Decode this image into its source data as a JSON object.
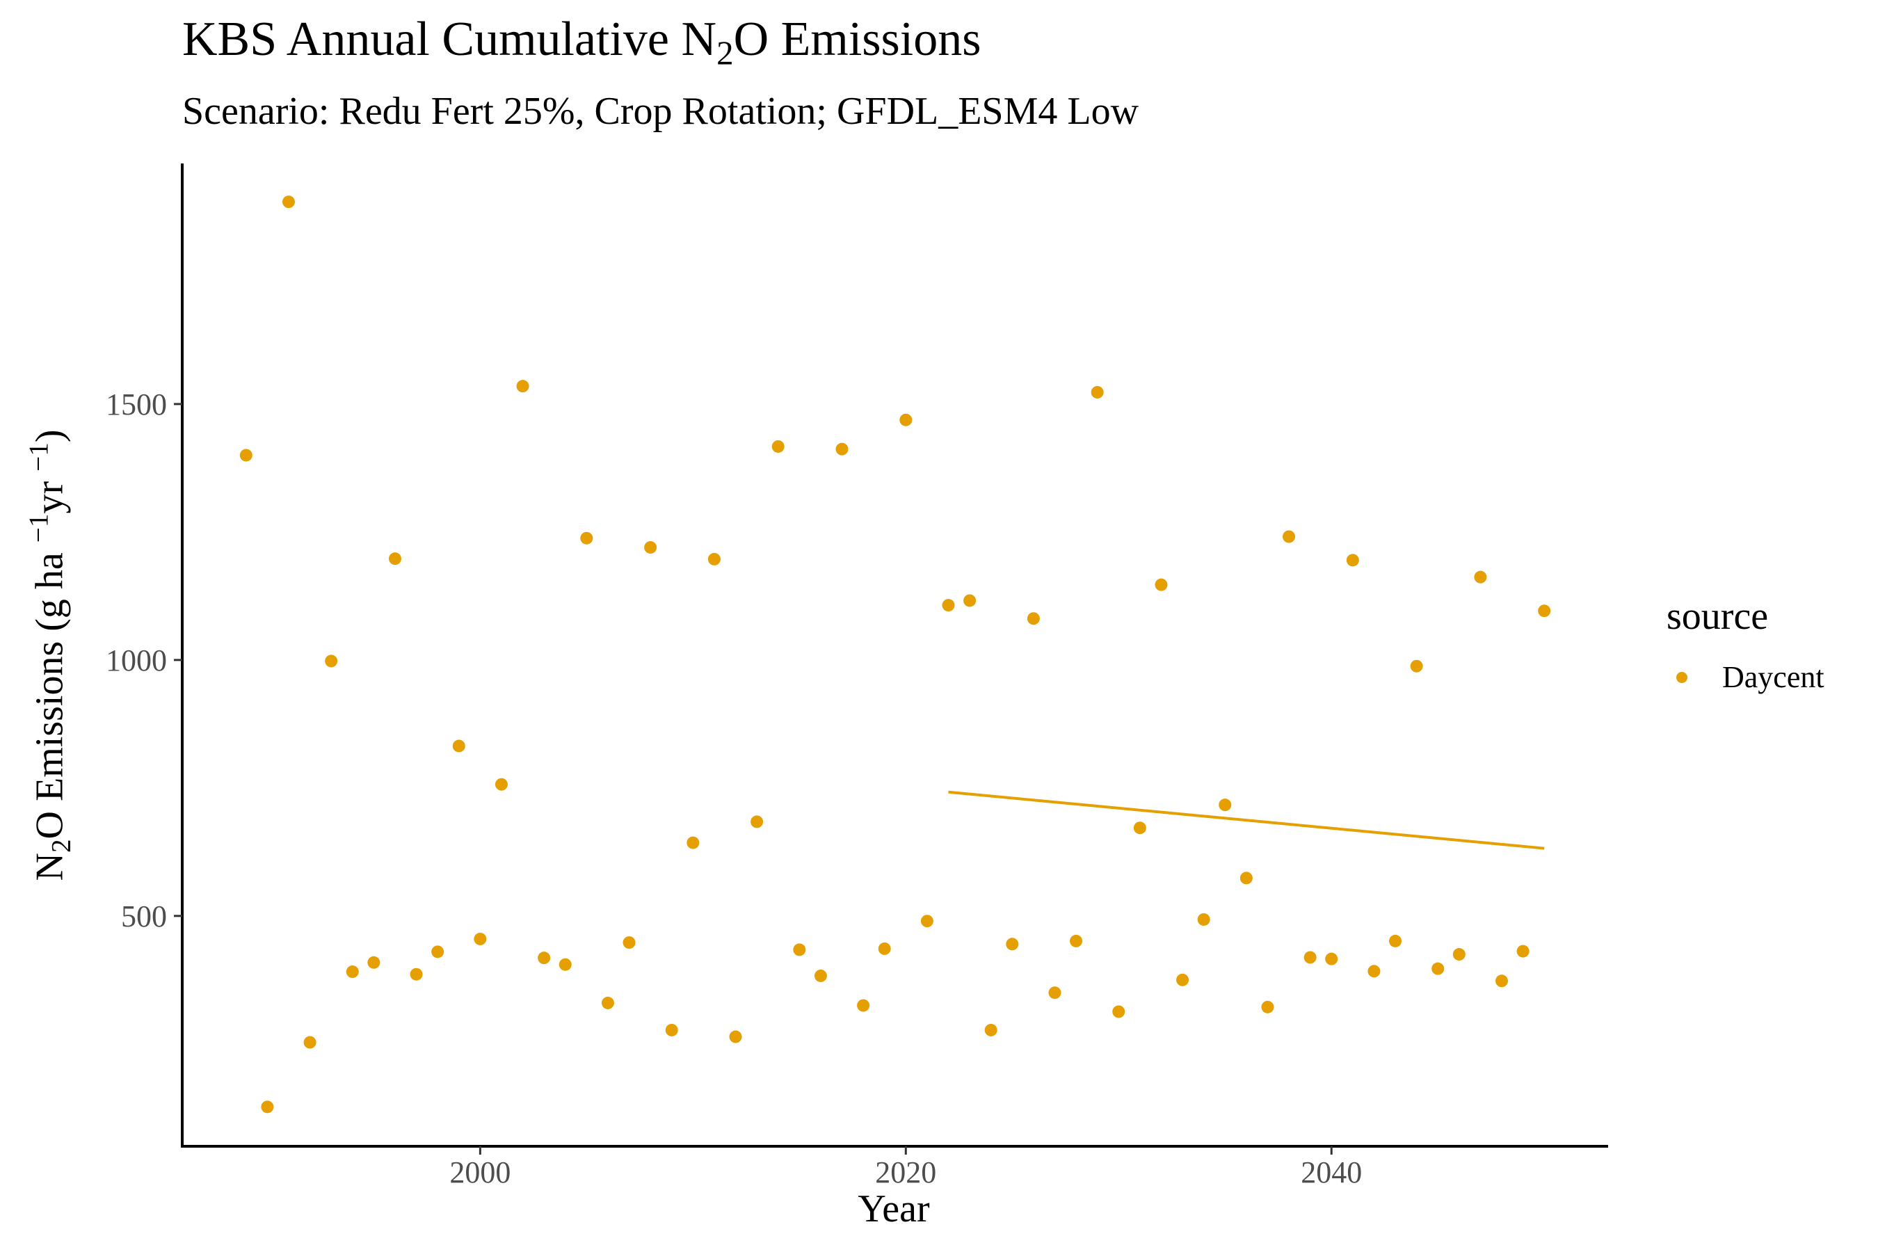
{
  "chart_data": {
    "type": "scatter",
    "title_parts": [
      "KBS Annual Cumulative N",
      "2",
      "O Emissions"
    ],
    "subtitle": "Scenario: Redu Fert 25%, Crop Rotation; GFDL_ESM4 Low",
    "xlabel": "Year",
    "ylabel_parts": [
      "N",
      "2",
      "O Emissions (g ha ",
      "−1",
      "yr ",
      "−1",
      ")"
    ],
    "xlim": [
      1986,
      2053
    ],
    "ylim": [
      50,
      1970
    ],
    "x_ticks": [
      2000,
      2020,
      2040
    ],
    "y_ticks": [
      500,
      1000,
      1500
    ],
    "grid": false,
    "legend": {
      "title": "source",
      "position": "right",
      "entries": [
        "Daycent"
      ]
    },
    "series": [
      {
        "name": "Daycent",
        "color": "#E69F00",
        "x": [
          1989,
          1990,
          1991,
          1992,
          1993,
          1994,
          1995,
          1996,
          1997,
          1998,
          1999,
          2000,
          2001,
          2002,
          2003,
          2004,
          2005,
          2006,
          2007,
          2008,
          2009,
          2010,
          2011,
          2012,
          2013,
          2014,
          2015,
          2016,
          2017,
          2018,
          2019,
          2020,
          2021,
          2022,
          2023,
          2024,
          2025,
          2026,
          2027,
          2028,
          2029,
          2030,
          2031,
          2032,
          2033,
          2034,
          2035,
          2036,
          2037,
          2038,
          2039,
          2040,
          2041,
          2042,
          2043,
          2044,
          2045,
          2046,
          2047,
          2048,
          2049,
          2050
        ],
        "y": [
          1400,
          127,
          1895,
          253,
          998,
          391,
          409,
          1198,
          386,
          430,
          832,
          455,
          757,
          1535,
          418,
          405,
          1238,
          330,
          448,
          1220,
          277,
          643,
          1197,
          264,
          684,
          1417,
          434,
          383,
          1412,
          325,
          436,
          1469,
          490,
          1107,
          1116,
          277,
          445,
          1081,
          350,
          451,
          1523,
          313,
          672,
          1147,
          375,
          493,
          717,
          574,
          322,
          1241,
          419,
          416,
          1195,
          392,
          451,
          988,
          397,
          425,
          1162,
          373,
          431,
          1096
        ]
      }
    ],
    "trend_line": {
      "x": [
        2022,
        2050
      ],
      "y": [
        742,
        632
      ]
    }
  }
}
